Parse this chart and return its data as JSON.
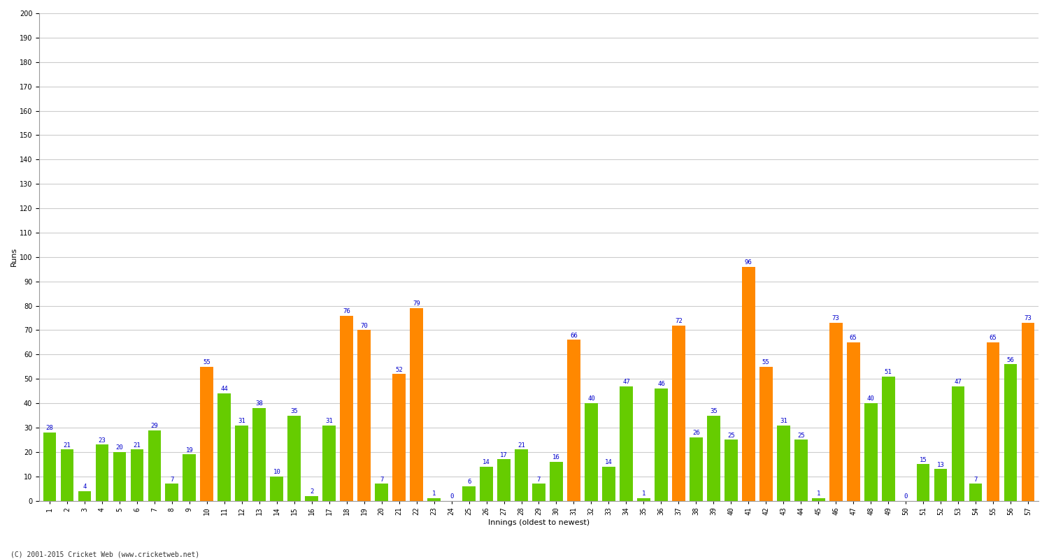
{
  "xlabel": "Innings (oldest to newest)",
  "ylabel": "Runs",
  "background_color": "#ffffff",
  "grid_color": "#cccccc",
  "ylim": [
    0,
    200
  ],
  "yticks": [
    0,
    10,
    20,
    30,
    40,
    50,
    60,
    70,
    80,
    90,
    100,
    110,
    120,
    130,
    140,
    150,
    160,
    170,
    180,
    190,
    200
  ],
  "values": [
    28,
    21,
    4,
    23,
    20,
    21,
    29,
    7,
    19,
    55,
    44,
    31,
    38,
    10,
    35,
    2,
    31,
    76,
    70,
    7,
    52,
    79,
    1,
    0,
    6,
    14,
    17,
    21,
    7,
    16,
    66,
    40,
    14,
    47,
    1,
    46,
    72,
    26,
    35,
    25,
    96,
    55,
    31,
    25,
    1,
    73,
    65,
    40,
    51,
    0,
    15,
    13,
    47,
    7,
    65,
    56,
    73
  ],
  "colors": [
    "#66cc00",
    "#66cc00",
    "#66cc00",
    "#66cc00",
    "#66cc00",
    "#66cc00",
    "#66cc00",
    "#66cc00",
    "#66cc00",
    "#ff8800",
    "#66cc00",
    "#66cc00",
    "#66cc00",
    "#66cc00",
    "#66cc00",
    "#66cc00",
    "#66cc00",
    "#ff8800",
    "#ff8800",
    "#66cc00",
    "#ff8800",
    "#ff8800",
    "#66cc00",
    "#66cc00",
    "#66cc00",
    "#66cc00",
    "#66cc00",
    "#66cc00",
    "#66cc00",
    "#66cc00",
    "#ff8800",
    "#66cc00",
    "#66cc00",
    "#66cc00",
    "#66cc00",
    "#66cc00",
    "#ff8800",
    "#66cc00",
    "#66cc00",
    "#66cc00",
    "#ff8800",
    "#ff8800",
    "#66cc00",
    "#66cc00",
    "#66cc00",
    "#ff8800",
    "#ff8800",
    "#66cc00",
    "#66cc00",
    "#66cc00",
    "#66cc00",
    "#66cc00",
    "#66cc00",
    "#66cc00",
    "#ff8800",
    "#66cc00",
    "#ff8800"
  ],
  "label_color": "#0000cc",
  "label_fontsize": 6.5,
  "tick_fontsize": 7,
  "axis_label_fontsize": 8,
  "footer": "(C) 2001-2015 Cricket Web (www.cricketweb.net)"
}
